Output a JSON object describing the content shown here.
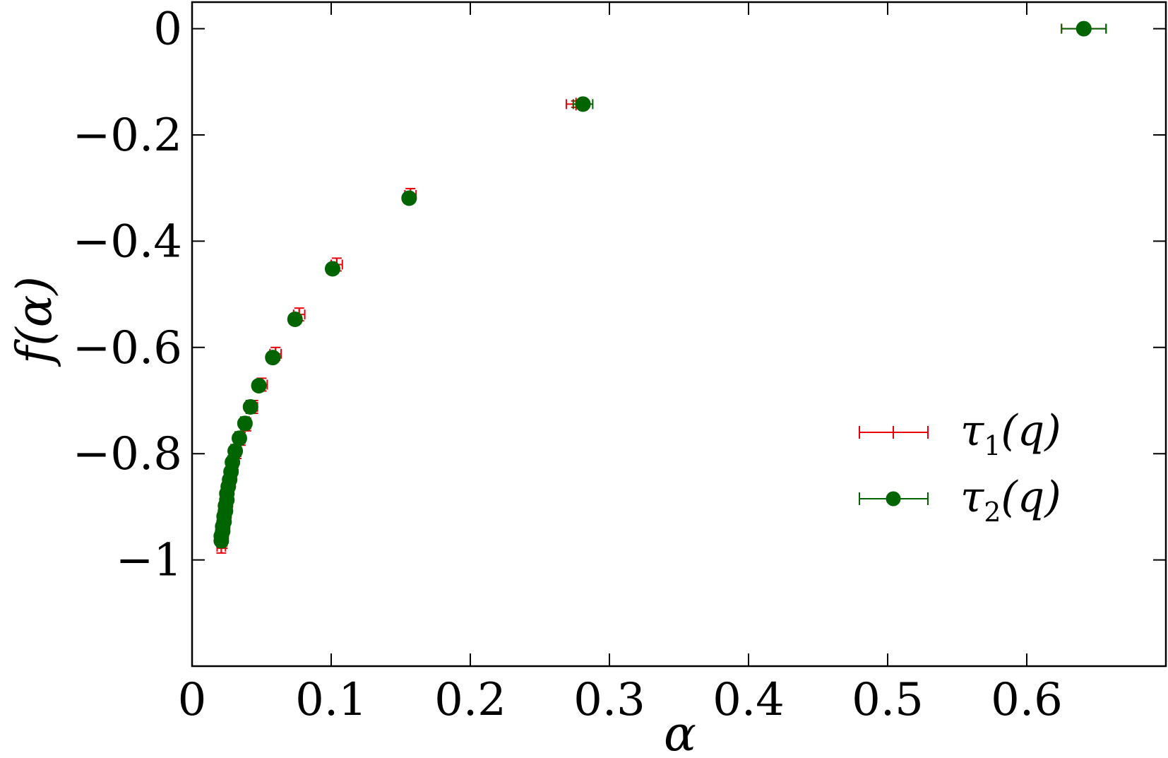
{
  "chart_data": {
    "type": "scatter",
    "xlabel": "α",
    "ylabel": "f(α)",
    "xlim": [
      0,
      0.7
    ],
    "ylim": [
      -1.2,
      0.05
    ],
    "x_ticks": [
      {
        "value": 0,
        "label": "0"
      },
      {
        "value": 0.1,
        "label": "0.1"
      },
      {
        "value": 0.2,
        "label": "0.2"
      },
      {
        "value": 0.3,
        "label": "0.3"
      },
      {
        "value": 0.4,
        "label": "0.4"
      },
      {
        "value": 0.5,
        "label": "0.5"
      },
      {
        "value": 0.6,
        "label": "0.6"
      }
    ],
    "y_ticks": [
      {
        "value": 0,
        "label": "0"
      },
      {
        "value": -0.2,
        "label": "−0.2"
      },
      {
        "value": -0.4,
        "label": "−0.4"
      },
      {
        "value": -0.6,
        "label": "−0.6"
      },
      {
        "value": -0.8,
        "label": "−0.8"
      },
      {
        "value": -1,
        "label": "−1"
      }
    ],
    "grid": false,
    "legend_position": "center-right",
    "series": [
      {
        "name": "τ1(q)",
        "name_main": "τ",
        "name_sub": "1",
        "name_tail": "(q)",
        "color": "#e8000b",
        "marker": "tick",
        "points": [
          {
            "x": 0.641,
            "y": 0.0,
            "xerr": 0.016,
            "yerr": 0.004
          },
          {
            "x": 0.276,
            "y": -0.142,
            "xerr": 0.007,
            "yerr": 0.006
          },
          {
            "x": 0.157,
            "y": -0.313,
            "xerr": 0.004,
            "yerr": 0.012
          },
          {
            "x": 0.104,
            "y": -0.444,
            "xerr": 0.004,
            "yerr": 0.012
          },
          {
            "x": 0.077,
            "y": -0.538,
            "xerr": 0.004,
            "yerr": 0.012
          },
          {
            "x": 0.06,
            "y": -0.612,
            "xerr": 0.004,
            "yerr": 0.012
          },
          {
            "x": 0.05,
            "y": -0.67,
            "xerr": 0.004,
            "yerr": 0.012
          },
          {
            "x": 0.044,
            "y": -0.712,
            "xerr": 0.003,
            "yerr": 0.012
          },
          {
            "x": 0.039,
            "y": -0.745,
            "xerr": 0.003,
            "yerr": 0.012
          },
          {
            "x": 0.035,
            "y": -0.772,
            "xerr": 0.003,
            "yerr": 0.012
          },
          {
            "x": 0.032,
            "y": -0.797,
            "xerr": 0.003,
            "yerr": 0.012
          },
          {
            "x": 0.03,
            "y": -0.818,
            "xerr": 0.003,
            "yerr": 0.012
          },
          {
            "x": 0.029,
            "y": -0.835,
            "xerr": 0.003,
            "yerr": 0.012
          },
          {
            "x": 0.028,
            "y": -0.85,
            "xerr": 0.003,
            "yerr": 0.012
          },
          {
            "x": 0.027,
            "y": -0.863,
            "xerr": 0.003,
            "yerr": 0.012
          },
          {
            "x": 0.026,
            "y": -0.876,
            "xerr": 0.003,
            "yerr": 0.012
          },
          {
            "x": 0.026,
            "y": -0.888,
            "xerr": 0.003,
            "yerr": 0.012
          },
          {
            "x": 0.025,
            "y": -0.899,
            "xerr": 0.003,
            "yerr": 0.012
          },
          {
            "x": 0.025,
            "y": -0.909,
            "xerr": 0.003,
            "yerr": 0.012
          },
          {
            "x": 0.024,
            "y": -0.919,
            "xerr": 0.003,
            "yerr": 0.012
          },
          {
            "x": 0.024,
            "y": -0.929,
            "xerr": 0.003,
            "yerr": 0.012
          },
          {
            "x": 0.023,
            "y": -0.938,
            "xerr": 0.003,
            "yerr": 0.012
          },
          {
            "x": 0.023,
            "y": -0.947,
            "xerr": 0.003,
            "yerr": 0.012
          },
          {
            "x": 0.022,
            "y": -0.956,
            "xerr": 0.003,
            "yerr": 0.012
          },
          {
            "x": 0.022,
            "y": -0.966,
            "xerr": 0.003,
            "yerr": 0.012
          },
          {
            "x": 0.021,
            "y": -0.975,
            "xerr": 0.003,
            "yerr": 0.012
          }
        ]
      },
      {
        "name": "τ2(q)",
        "name_main": "τ",
        "name_sub": "2",
        "name_tail": "(q)",
        "color": "#006400",
        "marker": "circle",
        "points": [
          {
            "x": 0.641,
            "y": 0.0,
            "xerr": 0.016,
            "yerr": 0.003
          },
          {
            "x": 0.281,
            "y": -0.142,
            "xerr": 0.007,
            "yerr": 0.006
          },
          {
            "x": 0.156,
            "y": -0.319,
            "xerr": 0.004,
            "yerr": 0.01
          },
          {
            "x": 0.101,
            "y": -0.452,
            "xerr": 0.004,
            "yerr": 0.01
          },
          {
            "x": 0.074,
            "y": -0.547,
            "xerr": 0.004,
            "yerr": 0.01
          },
          {
            "x": 0.058,
            "y": -0.619,
            "xerr": 0.004,
            "yerr": 0.01
          },
          {
            "x": 0.048,
            "y": -0.672,
            "xerr": 0.004,
            "yerr": 0.01
          },
          {
            "x": 0.042,
            "y": -0.712,
            "xerr": 0.003,
            "yerr": 0.012
          },
          {
            "x": 0.038,
            "y": -0.743,
            "xerr": 0.003,
            "yerr": 0.012
          },
          {
            "x": 0.034,
            "y": -0.771,
            "xerr": 0.003,
            "yerr": 0.012
          },
          {
            "x": 0.031,
            "y": -0.795,
            "xerr": 0.003,
            "yerr": 0.012
          },
          {
            "x": 0.029,
            "y": -0.816,
            "xerr": 0.003,
            "yerr": 0.012
          },
          {
            "x": 0.028,
            "y": -0.834,
            "xerr": 0.003,
            "yerr": 0.012
          },
          {
            "x": 0.027,
            "y": -0.849,
            "xerr": 0.003,
            "yerr": 0.012
          },
          {
            "x": 0.026,
            "y": -0.862,
            "xerr": 0.003,
            "yerr": 0.012
          },
          {
            "x": 0.025,
            "y": -0.875,
            "xerr": 0.003,
            "yerr": 0.012
          },
          {
            "x": 0.025,
            "y": -0.887,
            "xerr": 0.003,
            "yerr": 0.012
          },
          {
            "x": 0.024,
            "y": -0.898,
            "xerr": 0.003,
            "yerr": 0.012
          },
          {
            "x": 0.024,
            "y": -0.908,
            "xerr": 0.003,
            "yerr": 0.012
          },
          {
            "x": 0.023,
            "y": -0.918,
            "xerr": 0.003,
            "yerr": 0.012
          },
          {
            "x": 0.023,
            "y": -0.928,
            "xerr": 0.003,
            "yerr": 0.012
          },
          {
            "x": 0.022,
            "y": -0.937,
            "xerr": 0.003,
            "yerr": 0.012
          },
          {
            "x": 0.022,
            "y": -0.946,
            "xerr": 0.003,
            "yerr": 0.012
          },
          {
            "x": 0.021,
            "y": -0.955,
            "xerr": 0.003,
            "yerr": 0.012
          },
          {
            "x": 0.021,
            "y": -0.964,
            "xerr": 0.003,
            "yerr": 0.012
          }
        ]
      }
    ]
  }
}
